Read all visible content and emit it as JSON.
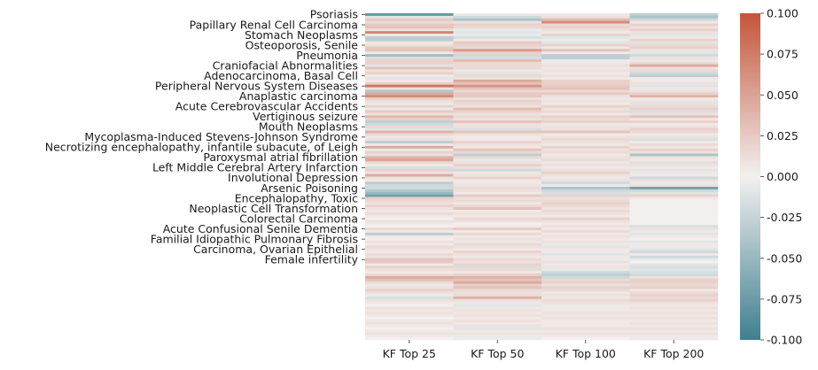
{
  "chart_data": {
    "type": "heatmap",
    "title": "",
    "xlabel": "",
    "ylabel": "",
    "columns": [
      "KF Top 25",
      "KF Top 50",
      "KF Top 100",
      "KF Top 200"
    ],
    "row_count": 128,
    "y_tick_every": 4,
    "y_tick_labels": [
      "Psoriasis",
      "Papillary Renal Cell Carcinoma",
      "Stomach Neoplasms",
      "Osteoporosis, Senile",
      "Pneumonia",
      "Craniofacial Abnormalities",
      "Adenocarcinoma, Basal Cell",
      "Peripheral Nervous System Diseases",
      "Anaplastic carcinoma",
      "Acute Cerebrovascular Accidents",
      "Vertiginous seizure",
      "Mouth Neoplasms",
      "Mycoplasma-Induced Stevens-Johnson Syndrome",
      "Necrotizing encephalopathy, infantile subacute, of Leigh",
      "Paroxysmal atrial fibrillation",
      "Left Middle Cerebral Artery Infarction",
      "Involutional Depression",
      "Arsenic Poisoning",
      "Encephalopathy, Toxic",
      "Neoplastic Cell Transformation",
      "Colorectal Carcinoma",
      "Acute Confusional Senile Dementia",
      "Familial Idiopathic Pulmonary Fibrosis",
      "Carcinoma, Ovarian Epithelial",
      "Female infertility"
    ],
    "colorbar": {
      "vmin": -0.1,
      "vmax": 0.1,
      "ticks": [
        "0.100",
        "0.075",
        "0.050",
        "0.025",
        "0.000",
        "-0.025",
        "-0.050",
        "-0.075",
        "-0.100"
      ],
      "tick_values": [
        0.1,
        0.075,
        0.05,
        0.025,
        0.0,
        -0.025,
        -0.05,
        -0.075,
        -0.1
      ],
      "colormap": "diverging",
      "color_low": "#3f7f8f",
      "color_mid": "#f2f0ef",
      "color_high": "#c4553a"
    },
    "grid": false,
    "legend": "colorbar right",
    "values": [
      [
        -0.08,
        0.005,
        0.005,
        -0.03
      ],
      [
        -0.01,
        -0.02,
        0.01,
        -0.04
      ],
      [
        0.025,
        -0.04,
        0.035,
        -0.02
      ],
      [
        0.015,
        0.01,
        0.065,
        0.005
      ],
      [
        0.025,
        0.02,
        0.015,
        0.02
      ],
      [
        0.03,
        0.015,
        0.02,
        0.01
      ],
      [
        0.01,
        -0.005,
        0.01,
        0.02
      ],
      [
        0.07,
        -0.01,
        0.005,
        0.01
      ],
      [
        0.005,
        -0.005,
        0.02,
        -0.01
      ],
      [
        -0.03,
        -0.015,
        -0.01,
        0.005
      ],
      [
        -0.03,
        0.005,
        -0.005,
        0.02
      ],
      [
        0.005,
        0.025,
        -0.01,
        -0.01
      ],
      [
        0.01,
        0.02,
        0.02,
        0.015
      ],
      [
        0.025,
        0.015,
        0.005,
        0.02
      ],
      [
        0.03,
        0.055,
        0.03,
        0.01
      ],
      [
        0.005,
        0.02,
        0.005,
        -0.01
      ],
      [
        -0.045,
        -0.02,
        -0.03,
        -0.02
      ],
      [
        -0.015,
        -0.015,
        -0.03,
        0.01
      ],
      [
        0.02,
        0.035,
        -0.005,
        0.005
      ],
      [
        0.02,
        0.015,
        0.005,
        0.015
      ],
      [
        -0.01,
        0.015,
        0.01,
        0.045
      ],
      [
        0.03,
        0.015,
        0.005,
        0.01
      ],
      [
        0.01,
        0.005,
        0.01,
        0.015
      ],
      [
        0.02,
        -0.01,
        0.005,
        -0.02
      ],
      [
        0.005,
        0.015,
        0.01,
        -0.03
      ],
      [
        -0.01,
        0.01,
        0.005,
        0.005
      ],
      [
        0.005,
        0.045,
        0.02,
        0.005
      ],
      [
        0.02,
        0.03,
        0.02,
        0.01
      ],
      [
        0.08,
        0.06,
        0.025,
        -0.01
      ],
      [
        0.01,
        0.03,
        0.03,
        0.005
      ],
      [
        -0.035,
        0.015,
        0.015,
        0.01
      ],
      [
        0.045,
        0.025,
        0.025,
        0.02
      ],
      [
        0.065,
        0.025,
        0.01,
        0.04
      ],
      [
        0.02,
        0.01,
        0.005,
        0.005
      ],
      [
        0.01,
        0.02,
        0.01,
        0.01
      ],
      [
        -0.005,
        0.015,
        0.005,
        -0.01
      ],
      [
        0.02,
        0.01,
        0.02,
        0.015
      ],
      [
        -0.005,
        0.035,
        0.01,
        0.02
      ],
      [
        0.025,
        0.02,
        0.015,
        -0.015
      ],
      [
        0.01,
        0.01,
        0.005,
        0.01
      ],
      [
        0.035,
        0.015,
        0.02,
        0.03
      ],
      [
        0.02,
        0.01,
        0.015,
        0.005
      ],
      [
        -0.03,
        0.03,
        0.02,
        0.02
      ],
      [
        -0.02,
        0.01,
        0.005,
        0.005
      ],
      [
        0.015,
        0.01,
        0.01,
        0.01
      ],
      [
        -0.01,
        -0.015,
        0.01,
        0.02
      ],
      [
        0.04,
        0.03,
        0.03,
        0.015
      ],
      [
        0.015,
        0.01,
        0.005,
        0.005
      ],
      [
        0.005,
        0.005,
        0.01,
        0.01
      ],
      [
        0.01,
        0.005,
        0.015,
        -0.015
      ],
      [
        -0.03,
        0.02,
        0.01,
        0.005
      ],
      [
        0.005,
        0.01,
        0.005,
        0.015
      ],
      [
        0.045,
        0.005,
        0.02,
        0.005
      ],
      [
        -0.005,
        0.03,
        0.01,
        0.02
      ],
      [
        0.02,
        0.015,
        0.015,
        0.01
      ],
      [
        0.01,
        -0.03,
        0.005,
        -0.04
      ],
      [
        0.04,
        0.015,
        0.01,
        0.01
      ],
      [
        0.05,
        -0.005,
        0.015,
        0.005
      ],
      [
        0.015,
        0.01,
        -0.005,
        0.015
      ],
      [
        0.005,
        0.02,
        0.01,
        -0.01
      ],
      [
        -0.015,
        0.01,
        0.005,
        0.005
      ],
      [
        0.02,
        -0.02,
        0.01,
        0.01
      ],
      [
        0.01,
        0.005,
        0.02,
        -0.005
      ],
      [
        0.045,
        0.01,
        0.01,
        0.005
      ],
      [
        0.01,
        0.02,
        0.005,
        -0.02
      ],
      [
        0.005,
        0.005,
        0.01,
        0.01
      ],
      [
        -0.03,
        0.005,
        -0.02,
        0.005
      ],
      [
        -0.02,
        0.01,
        -0.005,
        0.01
      ],
      [
        -0.02,
        0.015,
        -0.04,
        -0.07
      ],
      [
        -0.035,
        0.01,
        -0.02,
        -0.02
      ],
      [
        -0.05,
        0.005,
        -0.015,
        -0.01
      ],
      [
        -0.07,
        0.025,
        0.02,
        0.02
      ],
      [
        0.02,
        0.01,
        0.01,
        0.005
      ],
      [
        0.015,
        0.015,
        0.015,
        0.0
      ],
      [
        0.01,
        0.005,
        0.02,
        0.0
      ],
      [
        0.02,
        0.015,
        0.015,
        0.0
      ],
      [
        0.01,
        0.03,
        0.01,
        0.0
      ],
      [
        0.005,
        0.005,
        0.015,
        0.0
      ],
      [
        0.015,
        0.01,
        0.01,
        0.0
      ],
      [
        0.005,
        0.005,
        0.005,
        0.0
      ],
      [
        0.0,
        0.015,
        0.02,
        0.0
      ],
      [
        0.01,
        0.01,
        0.01,
        0.0
      ],
      [
        0.005,
        0.0,
        0.005,
        0.0
      ],
      [
        0.0,
        0.005,
        0.01,
        -0.015
      ],
      [
        0.015,
        0.025,
        0.005,
        0.01
      ],
      [
        0.005,
        0.005,
        0.015,
        -0.005
      ],
      [
        -0.03,
        0.015,
        0.005,
        -0.01
      ],
      [
        0.005,
        0.005,
        0.01,
        0.005
      ],
      [
        0.0,
        0.01,
        0.005,
        0.0
      ],
      [
        0.01,
        0.005,
        0.01,
        -0.01
      ],
      [
        0.005,
        0.015,
        0.005,
        0.005
      ],
      [
        0.015,
        0.01,
        -0.01,
        0.005
      ],
      [
        0.01,
        0.005,
        0.005,
        -0.01
      ],
      [
        0.005,
        0.02,
        0.005,
        -0.02
      ],
      [
        0.015,
        0.01,
        -0.01,
        0.005
      ],
      [
        0.01,
        0.005,
        0.005,
        -0.02
      ],
      [
        0.03,
        0.015,
        -0.005,
        -0.005
      ],
      [
        0.025,
        0.01,
        0.01,
        0.0
      ],
      [
        0.005,
        0.02,
        0.005,
        -0.01
      ],
      [
        0.02,
        -0.015,
        0.01,
        -0.015
      ],
      [
        0.01,
        0.015,
        -0.005,
        -0.01
      ],
      [
        0.005,
        0.005,
        -0.02,
        -0.015
      ],
      [
        0.015,
        0.02,
        -0.03,
        -0.02
      ],
      [
        0.045,
        0.04,
        -0.02,
        0.01
      ],
      [
        0.03,
        0.03,
        0.015,
        0.02
      ],
      [
        0.015,
        0.045,
        0.02,
        0.02
      ],
      [
        0.005,
        0.02,
        0.01,
        0.015
      ],
      [
        0.01,
        0.03,
        0.02,
        0.02
      ],
      [
        0.02,
        0.015,
        0.015,
        0.005
      ],
      [
        0.01,
        0.01,
        0.005,
        0.015
      ],
      [
        0.005,
        0.015,
        0.01,
        0.02
      ],
      [
        -0.015,
        0.04,
        0.005,
        0.015
      ],
      [
        0.01,
        0.01,
        0.015,
        0.02
      ],
      [
        0.005,
        0.005,
        0.01,
        0.01
      ],
      [
        0.0,
        -0.01,
        0.005,
        0.005
      ],
      [
        0.01,
        0.005,
        -0.005,
        0.01
      ],
      [
        0.005,
        0.01,
        0.005,
        0.005
      ],
      [
        0.01,
        0.005,
        0.01,
        0.01
      ],
      [
        0.005,
        0.01,
        0.005,
        0.005
      ],
      [
        0.0,
        0.005,
        0.01,
        0.01
      ],
      [
        0.005,
        0.01,
        0.005,
        0.005
      ],
      [
        0.01,
        0.005,
        0.005,
        0.01
      ],
      [
        0.005,
        0.01,
        0.005,
        0.005
      ],
      [
        0.0,
        -0.01,
        0.01,
        0.01
      ],
      [
        0.005,
        0.005,
        0.005,
        0.005
      ],
      [
        0.01,
        0.01,
        0.01,
        0.01
      ],
      [
        0.005,
        -0.005,
        0.005,
        0.005
      ],
      [
        0.0,
        0.005,
        0.0,
        0.005
      ]
    ]
  }
}
